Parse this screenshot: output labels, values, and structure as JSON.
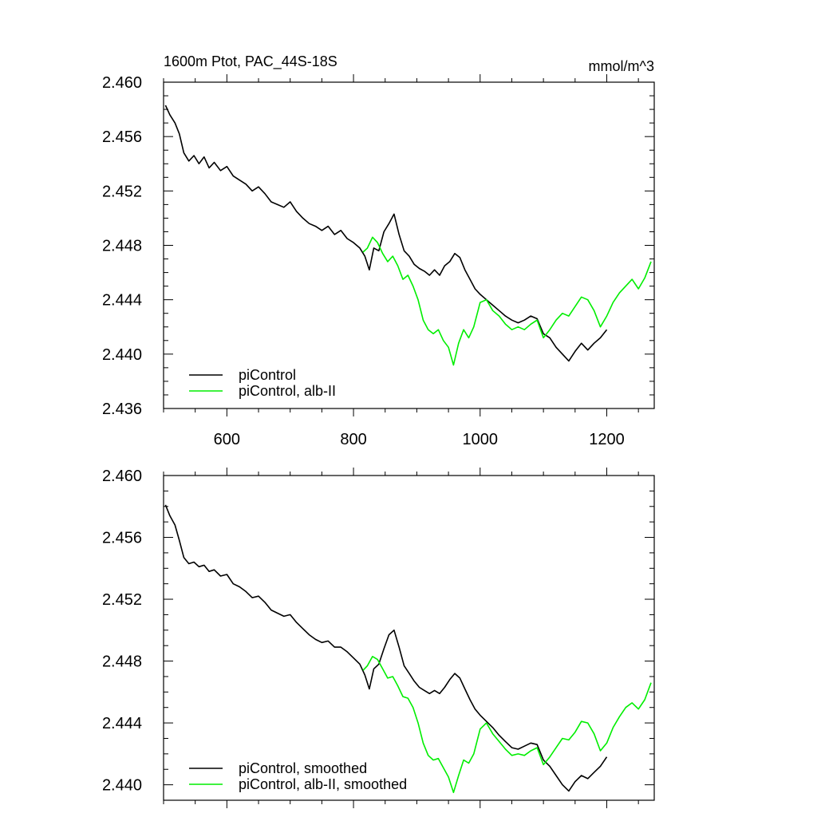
{
  "chart_data": [
    {
      "type": "line",
      "title": "1600m Ptot, PAC_44S-18S",
      "units": "mmol/m^3",
      "xlim": [
        500,
        1275
      ],
      "ylim": [
        2.436,
        2.46
      ],
      "x_ticks": [
        600,
        800,
        1000,
        1200
      ],
      "x_tick_labels": [
        "600",
        "800",
        "1000",
        "1200"
      ],
      "y_ticks": [
        2.436,
        2.44,
        2.444,
        2.448,
        2.452,
        2.456,
        2.46
      ],
      "y_tick_labels": [
        "2.436",
        "2.440",
        "2.444",
        "2.448",
        "2.452",
        "2.456",
        "2.460"
      ],
      "legend_position": "bottom-left",
      "series": [
        {
          "name": "piControl",
          "color": "#000000",
          "x": [
            503,
            510,
            518,
            525,
            532,
            540,
            548,
            556,
            564,
            572,
            580,
            590,
            600,
            610,
            620,
            630,
            640,
            650,
            660,
            670,
            680,
            690,
            700,
            710,
            720,
            730,
            740,
            750,
            760,
            770,
            780,
            790,
            800,
            810,
            818,
            825,
            832,
            840,
            848,
            856,
            864,
            872,
            880,
            888,
            896,
            904,
            912,
            920,
            928,
            936,
            944,
            952,
            960,
            968,
            976,
            984,
            992,
            1000,
            1010,
            1020,
            1030,
            1040,
            1050,
            1060,
            1070,
            1080,
            1090,
            1100,
            1110,
            1120,
            1130,
            1140,
            1150,
            1160,
            1170,
            1180,
            1190,
            1200
          ],
          "values": [
            2.4583,
            2.4576,
            2.457,
            2.4562,
            2.4548,
            2.4542,
            2.4546,
            2.454,
            2.4545,
            2.4537,
            2.4541,
            2.4535,
            2.4538,
            2.4531,
            2.4528,
            2.4525,
            2.452,
            2.4523,
            2.4518,
            2.4512,
            2.451,
            2.4508,
            2.4512,
            2.4505,
            2.45,
            2.4496,
            2.4494,
            2.4491,
            2.4494,
            2.4488,
            2.4491,
            2.4485,
            2.4482,
            2.4478,
            2.4472,
            2.4462,
            2.4478,
            2.4476,
            2.449,
            2.4496,
            2.4503,
            2.4488,
            2.4476,
            2.4472,
            2.4466,
            2.4463,
            2.4461,
            2.4458,
            2.4462,
            2.4458,
            2.4465,
            2.4468,
            2.4474,
            2.4471,
            2.4462,
            2.4455,
            2.4448,
            2.4444,
            2.444,
            2.4436,
            2.4432,
            2.4428,
            2.4425,
            2.4423,
            2.4425,
            2.4428,
            2.4426,
            2.4415,
            2.4412,
            2.4405,
            2.44,
            2.4395,
            2.4402,
            2.4408,
            2.4403,
            2.4408,
            2.4412,
            2.4418
          ]
        },
        {
          "name": "piControl, alb-II",
          "color": "#00ee00",
          "x": [
            815,
            822,
            830,
            838,
            846,
            854,
            862,
            870,
            878,
            886,
            894,
            902,
            910,
            918,
            926,
            934,
            942,
            950,
            958,
            966,
            974,
            982,
            990,
            1000,
            1010,
            1020,
            1030,
            1040,
            1050,
            1060,
            1070,
            1080,
            1090,
            1100,
            1110,
            1120,
            1130,
            1140,
            1150,
            1160,
            1170,
            1180,
            1190,
            1200,
            1210,
            1220,
            1230,
            1240,
            1250,
            1260,
            1270
          ],
          "values": [
            2.4475,
            2.4478,
            2.4486,
            2.4482,
            2.4474,
            2.4468,
            2.4472,
            2.4465,
            2.4455,
            2.4458,
            2.445,
            2.444,
            2.4425,
            2.4418,
            2.4415,
            2.4418,
            2.441,
            2.4405,
            2.4392,
            2.4408,
            2.4418,
            2.4412,
            2.442,
            2.4438,
            2.444,
            2.4432,
            2.4428,
            2.4422,
            2.4418,
            2.442,
            2.4418,
            2.4422,
            2.4425,
            2.4412,
            2.4418,
            2.4425,
            2.443,
            2.4428,
            2.4435,
            2.4442,
            2.444,
            2.4432,
            2.442,
            2.4428,
            2.4438,
            2.4445,
            2.445,
            2.4455,
            2.4448,
            2.4456,
            2.4468
          ]
        }
      ]
    },
    {
      "type": "line",
      "xlim": [
        500,
        1275
      ],
      "ylim": [
        2.439,
        2.46
      ],
      "x_ticks": [
        600,
        800,
        1000,
        1200
      ],
      "y_ticks": [
        2.44,
        2.444,
        2.448,
        2.452,
        2.456,
        2.46
      ],
      "y_tick_labels": [
        "2.440",
        "2.444",
        "2.448",
        "2.452",
        "2.456",
        "2.460"
      ],
      "legend_position": "bottom-left",
      "series": [
        {
          "name": "piControl, smoothed",
          "color": "#000000",
          "x": [
            503,
            510,
            518,
            525,
            532,
            540,
            548,
            556,
            564,
            572,
            580,
            590,
            600,
            610,
            620,
            630,
            640,
            650,
            660,
            670,
            680,
            690,
            700,
            710,
            720,
            730,
            740,
            750,
            760,
            770,
            780,
            790,
            800,
            810,
            818,
            825,
            832,
            840,
            848,
            856,
            864,
            872,
            880,
            888,
            896,
            904,
            912,
            920,
            928,
            936,
            944,
            952,
            960,
            968,
            976,
            984,
            992,
            1000,
            1010,
            1020,
            1030,
            1040,
            1050,
            1060,
            1070,
            1080,
            1090,
            1100,
            1110,
            1120,
            1130,
            1140,
            1150,
            1160,
            1170,
            1180,
            1190,
            1200
          ],
          "values": [
            2.4581,
            2.4574,
            2.4568,
            2.4558,
            2.4547,
            2.4543,
            2.4544,
            2.4541,
            2.4542,
            2.4538,
            2.4539,
            2.4535,
            2.4536,
            2.453,
            2.4528,
            2.4525,
            2.4521,
            2.4522,
            2.4518,
            2.4513,
            2.4511,
            2.4509,
            2.451,
            2.4505,
            2.4501,
            2.4497,
            2.4494,
            2.4492,
            2.4493,
            2.4489,
            2.4489,
            2.4486,
            2.4482,
            2.4478,
            2.4471,
            2.4462,
            2.4475,
            2.4478,
            2.4488,
            2.4497,
            2.45,
            2.4489,
            2.4477,
            2.4472,
            2.4467,
            2.4463,
            2.4461,
            2.4459,
            2.4461,
            2.4459,
            2.4463,
            2.4468,
            2.4472,
            2.4469,
            2.4462,
            2.4455,
            2.4449,
            2.4445,
            2.4441,
            2.4437,
            2.4432,
            2.4428,
            2.4424,
            2.4423,
            2.4425,
            2.4427,
            2.4426,
            2.4416,
            2.4412,
            2.4406,
            2.44,
            2.4396,
            2.4402,
            2.4406,
            2.4404,
            2.4408,
            2.4412,
            2.4418
          ]
        },
        {
          "name": "piControl, alb-II, smoothed",
          "color": "#00ee00",
          "x": [
            815,
            822,
            830,
            838,
            846,
            854,
            862,
            870,
            878,
            886,
            894,
            902,
            910,
            918,
            926,
            934,
            942,
            950,
            958,
            966,
            974,
            982,
            990,
            1000,
            1010,
            1020,
            1030,
            1040,
            1050,
            1060,
            1070,
            1080,
            1090,
            1100,
            1110,
            1120,
            1130,
            1140,
            1150,
            1160,
            1170,
            1180,
            1190,
            1200,
            1210,
            1220,
            1230,
            1240,
            1250,
            1260,
            1270
          ],
          "values": [
            2.4474,
            2.4477,
            2.4483,
            2.4481,
            2.4475,
            2.4469,
            2.447,
            2.4464,
            2.4457,
            2.4456,
            2.445,
            2.444,
            2.4427,
            2.4419,
            2.4416,
            2.4417,
            2.4411,
            2.4405,
            2.4395,
            2.4406,
            2.4416,
            2.4414,
            2.442,
            2.4436,
            2.444,
            2.4433,
            2.4428,
            2.4423,
            2.4419,
            2.442,
            2.4419,
            2.4422,
            2.4424,
            2.4413,
            2.4418,
            2.4424,
            2.443,
            2.4429,
            2.4434,
            2.4441,
            2.444,
            2.4433,
            2.4422,
            2.4427,
            2.4437,
            2.4444,
            2.445,
            2.4453,
            2.4449,
            2.4455,
            2.4466
          ]
        }
      ]
    }
  ]
}
